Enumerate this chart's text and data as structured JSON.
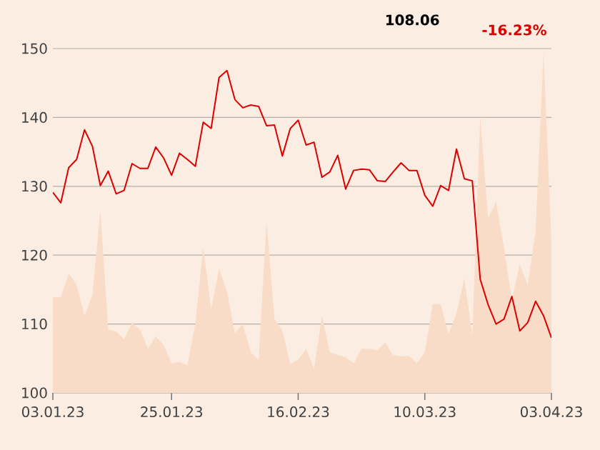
{
  "chart_data": {
    "type": "line",
    "annotations": [
      "108.06",
      "-16.23%"
    ],
    "categories": [
      "03.01.23",
      null,
      null,
      null,
      null,
      null,
      null,
      null,
      null,
      null,
      null,
      null,
      null,
      null,
      null,
      "25.01.23",
      null,
      null,
      null,
      null,
      null,
      null,
      null,
      null,
      null,
      null,
      null,
      null,
      null,
      null,
      null,
      "16.02.23",
      null,
      null,
      null,
      null,
      null,
      null,
      null,
      null,
      null,
      null,
      null,
      null,
      null,
      null,
      null,
      "10.03.23",
      null,
      null,
      null,
      null,
      null,
      null,
      null,
      null,
      null,
      null,
      null,
      null,
      null,
      null,
      null,
      "03.04.23"
    ],
    "series": [
      {
        "type": "area",
        "color": "#f8dcc7",
        "values": [
          113.9,
          113.9,
          117.3,
          115.7,
          111.2,
          114.2,
          126.5,
          109.2,
          108.9,
          107.8,
          110.2,
          109.2,
          106.4,
          108.2,
          106.9,
          104.3,
          104.5,
          104.0,
          110.0,
          121.1,
          112.1,
          118.0,
          114.7,
          108.7,
          110.0,
          105.9,
          104.8,
          124.9,
          110.7,
          109.0,
          104.2,
          104.8,
          106.4,
          103.5,
          111.1,
          105.9,
          105.5,
          105.2,
          104.3,
          106.4,
          106.4,
          106.2,
          107.3,
          105.5,
          105.3,
          105.4,
          104.3,
          105.9,
          112.9,
          112.9,
          108.5,
          111.6,
          116.6,
          108.3,
          140.2,
          125.4,
          127.7,
          121.1,
          113.5,
          118.7,
          115.6,
          123.5,
          149.4,
          121.8
        ]
      },
      {
        "color": "#dd0000",
        "values": [
          129.1,
          127.6,
          132.7,
          133.9,
          138.2,
          135.8,
          130.1,
          132.2,
          128.9,
          129.4,
          133.3,
          132.6,
          132.6,
          135.7,
          134.1,
          131.6,
          134.8,
          133.9,
          132.9,
          139.3,
          138.4,
          145.8,
          146.8,
          142.6,
          141.4,
          141.8,
          141.6,
          138.8,
          138.9,
          134.4,
          138.4,
          139.6,
          136.0,
          136.4,
          131.3,
          132.1,
          134.5,
          129.6,
          132.3,
          132.5,
          132.4,
          130.8,
          130.7,
          132.1,
          133.4,
          132.3,
          132.3,
          128.7,
          127.1,
          130.1,
          129.4,
          135.4,
          131.1,
          130.8,
          116.5,
          112.8,
          110.0,
          110.7,
          114.0,
          109.0,
          110.2,
          113.3,
          111.2,
          108.0
        ]
      }
    ],
    "ylim": [
      100,
      150
    ],
    "yticks": [
      100,
      110,
      120,
      130,
      140,
      150
    ],
    "grid": "y"
  }
}
